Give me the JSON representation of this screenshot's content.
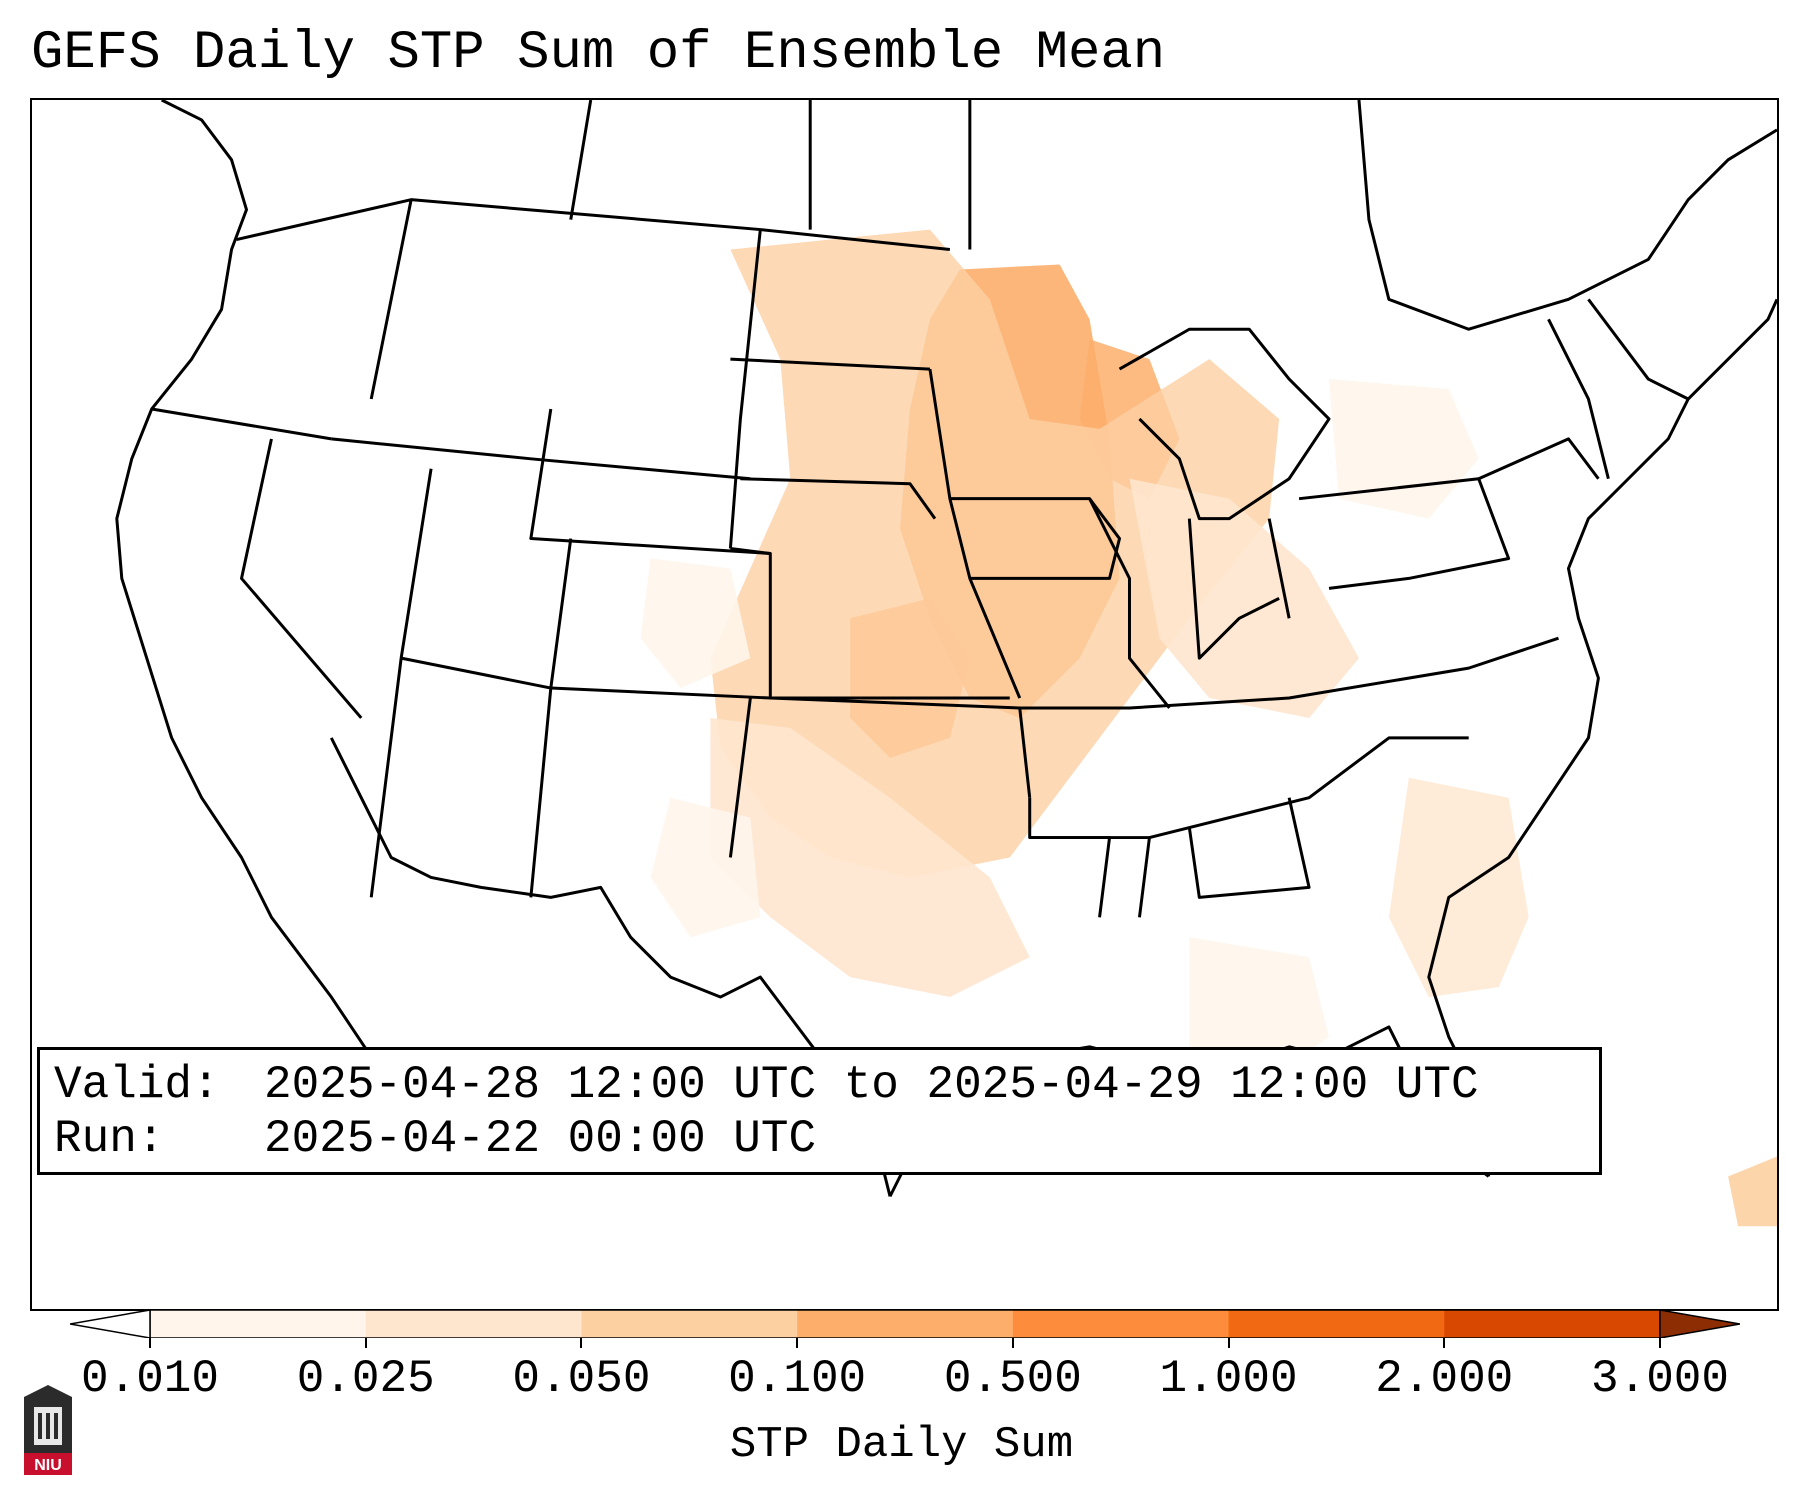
{
  "title": "GEFS Daily STP Sum of Ensemble Mean",
  "info": {
    "valid_key": "Valid:",
    "valid_value": "2025-04-28 12:00 UTC to 2025-04-29 12:00 UTC",
    "run_key": "Run:",
    "run_value": "2025-04-22 00:00 UTC"
  },
  "colorbar": {
    "label": "STP Daily Sum",
    "ticks": [
      "0.010",
      "0.025",
      "0.050",
      "0.100",
      "0.500",
      "1.000",
      "2.000",
      "3.000"
    ],
    "colors": [
      "#fff5eb",
      "#fee6ce",
      "#fdd0a2",
      "#fdae6b",
      "#fd8d3c",
      "#f16913",
      "#d94801",
      "#8c2d04"
    ]
  },
  "logo": {
    "text": "NIU",
    "accent": "#c8102e"
  }
}
